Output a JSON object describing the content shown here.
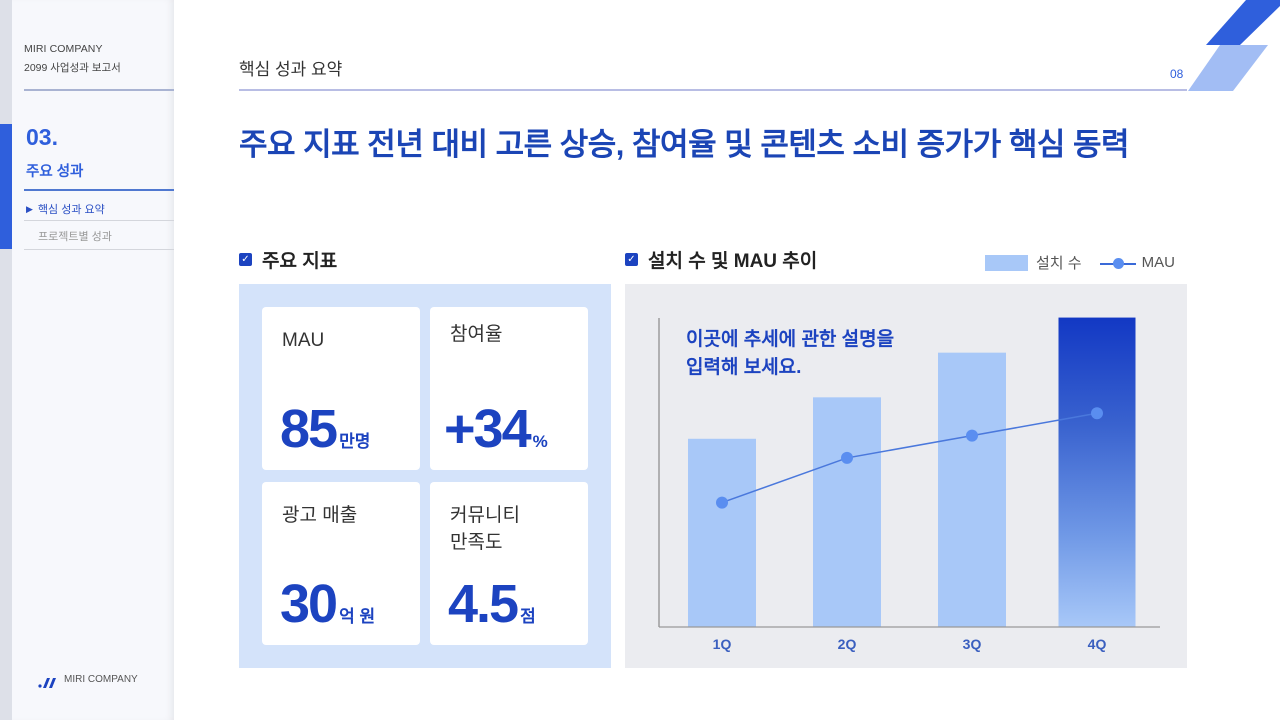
{
  "sidebar": {
    "company": "MIRI COMPANY",
    "report_title": "2099 사업성과 보고서",
    "section_number": "03.",
    "section_title": "주요 성과",
    "items": [
      {
        "label": "핵심 성과 요약",
        "active": true
      },
      {
        "label": "프로젝트별 성과",
        "active": false
      }
    ],
    "footer_logo": "MIRI COMPANY"
  },
  "header": {
    "title": "핵심 성과 요약",
    "page_number": "08"
  },
  "headline": "주요 지표 전년 대비 고른 상승, 참여율 및 콘텐츠 소비 증가가 핵심 동력",
  "kpi_section": {
    "title": "주요 지표",
    "cards": [
      {
        "label": "MAU",
        "value": "85",
        "unit": "만명"
      },
      {
        "label": "참여율",
        "value": "+34",
        "unit": "%"
      },
      {
        "label": "광고 매출",
        "value": "30",
        "unit": "억 원"
      },
      {
        "label": "커뮤니티\n만족도",
        "label_line1": "커뮤니티",
        "label_line2": "만족도",
        "value": "4.5",
        "unit": "점"
      }
    ]
  },
  "chart_section": {
    "title": "설치 수 및 MAU 추이",
    "legend": {
      "bar": "설치 수",
      "line": "MAU"
    },
    "note_line1": "이곳에 추세에 관한 설명을",
    "note_line2": "입력해 보세요."
  },
  "colors": {
    "accent": "#1c43c0",
    "accent_bright": "#2f5fdc",
    "bar": "#a8c8f8",
    "bar_highlight_top": "#1238c4",
    "line": "#5a8ef0",
    "kpi_panel_bg": "#d4e3fa",
    "chart_panel_bg": "#ebecf0"
  },
  "chart_data": {
    "type": "bar",
    "title": "설치 수 및 MAU 추이",
    "categories": [
      "1Q",
      "2Q",
      "3Q",
      "4Q"
    ],
    "series": [
      {
        "name": "설치 수",
        "type": "bar",
        "values": [
          59,
          72,
          86,
          97
        ],
        "highlight_index": 3
      },
      {
        "name": "MAU",
        "type": "line",
        "values": [
          39,
          53,
          60,
          67
        ]
      }
    ],
    "xlabel": "",
    "ylabel": "",
    "ylim": [
      0,
      100
    ],
    "grid": false,
    "legend_position": "top-right",
    "annotations": [
      "이곳에 추세에 관한 설명을 입력해 보세요."
    ]
  }
}
